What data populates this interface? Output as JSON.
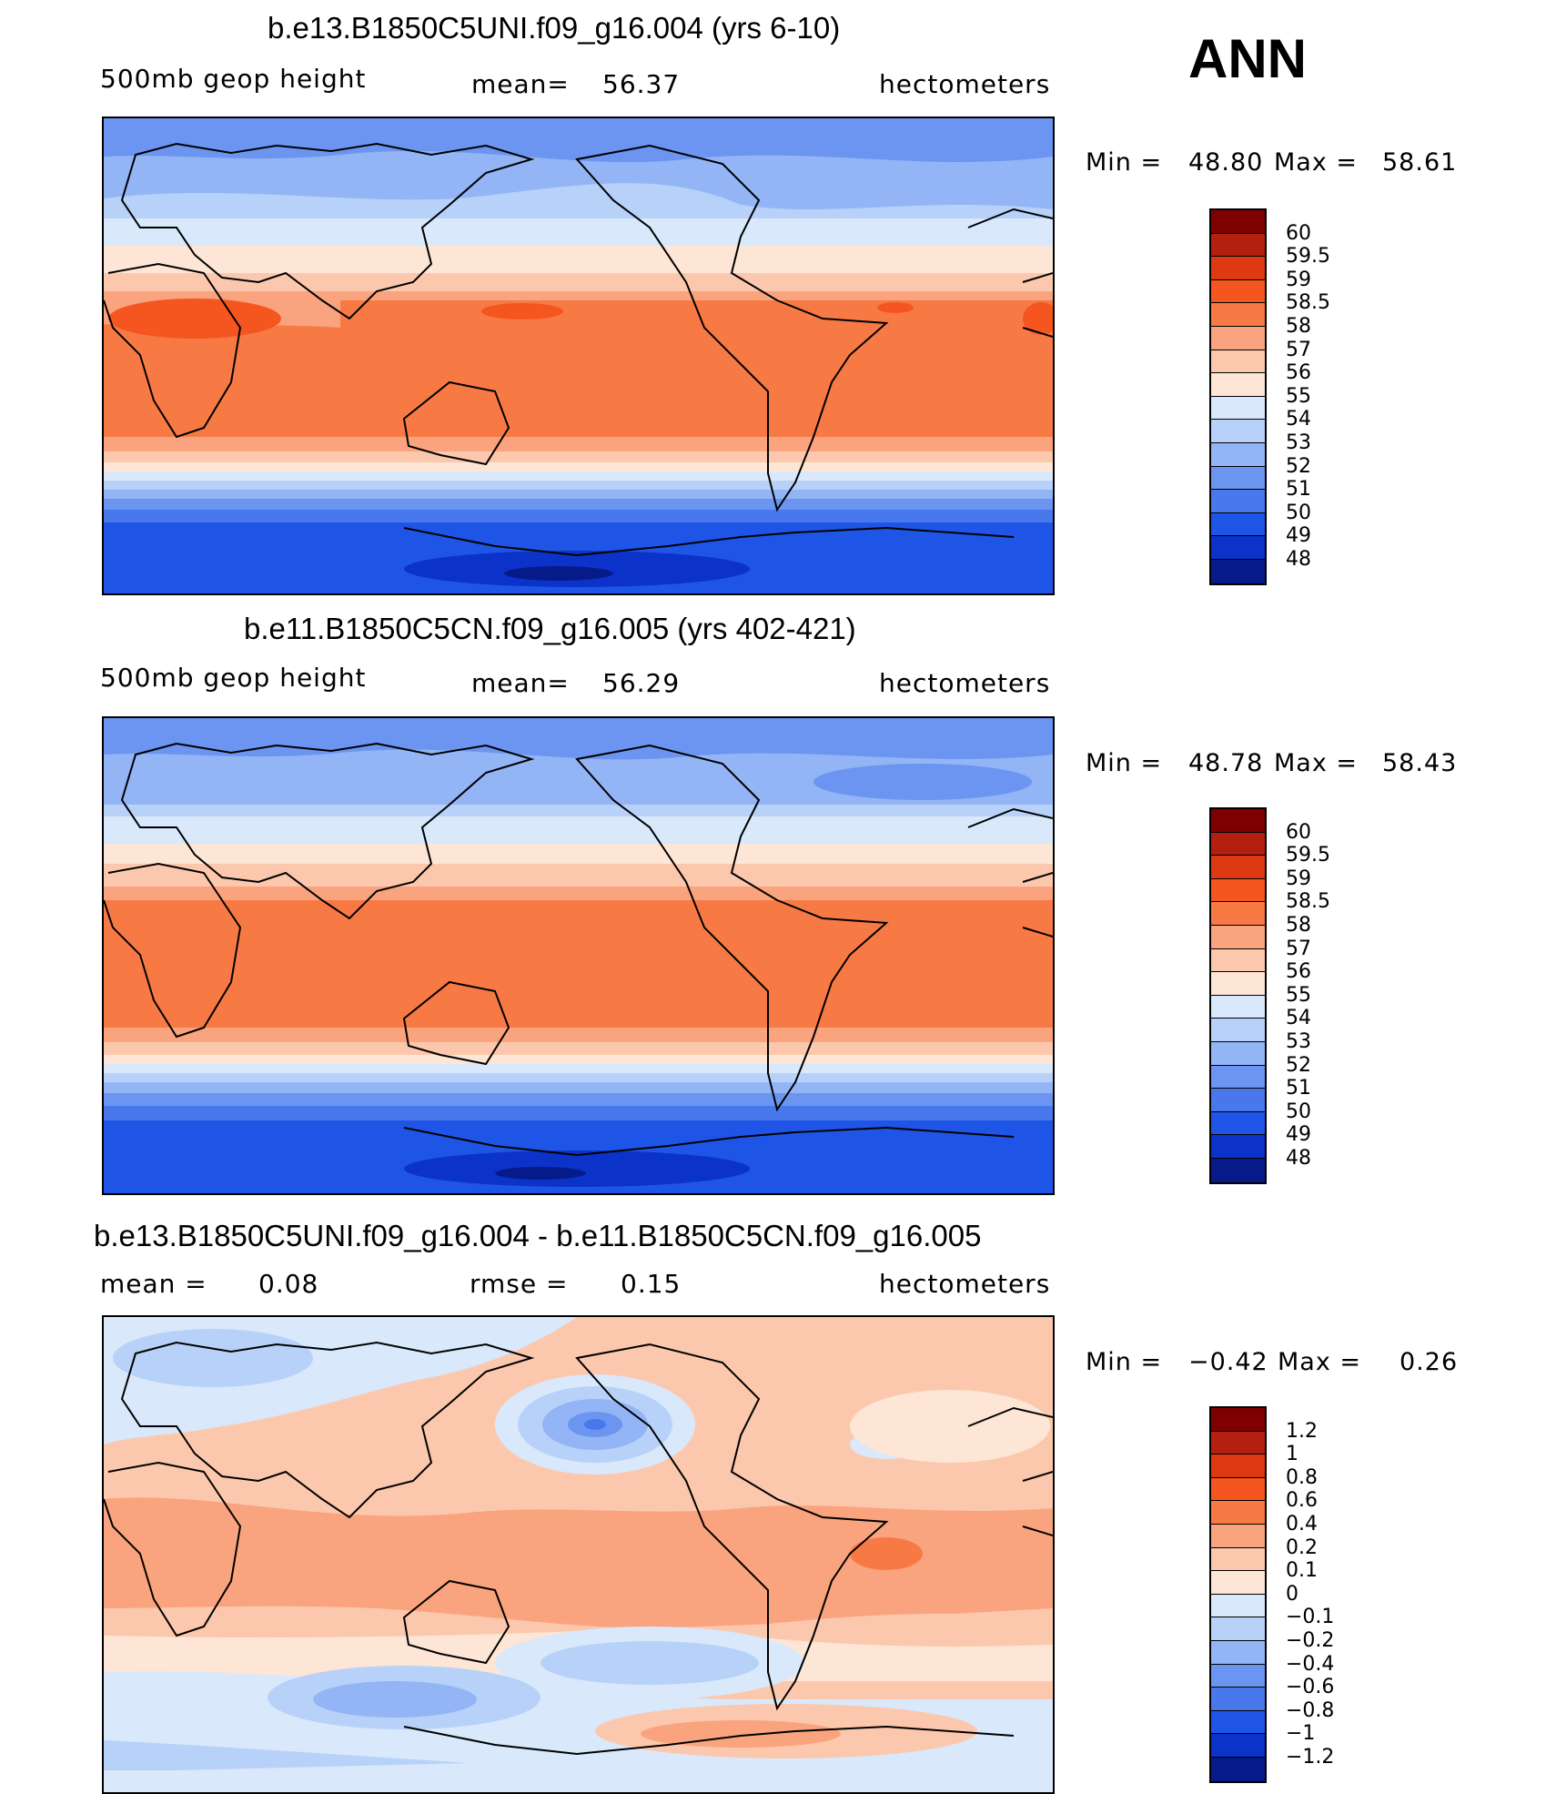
{
  "season": "ANN",
  "panels": [
    {
      "title": "b.e13.B1850C5UNI.f09_g16.004 (yrs 6-10)",
      "left_label": "500mb geop height",
      "mean_label": "mean=",
      "mean_value": "56.37",
      "units": "hectometers",
      "min_label": "Min =",
      "min_value": "48.80",
      "max_label": "Max =",
      "max_value": "58.61",
      "colorbar_levels": [
        "60",
        "59.5",
        "59",
        "58.5",
        "58",
        "57",
        "56",
        "55",
        "54",
        "53",
        "52",
        "51",
        "50",
        "49",
        "48"
      ]
    },
    {
      "title": "b.e11.B1850C5CN.f09_g16.005 (yrs 402-421)",
      "left_label": "500mb geop height",
      "mean_label": "mean=",
      "mean_value": "56.29",
      "units": "hectometers",
      "min_label": "Min =",
      "min_value": "48.78",
      "max_label": "Max =",
      "max_value": "58.43",
      "colorbar_levels": [
        "60",
        "59.5",
        "59",
        "58.5",
        "58",
        "57",
        "56",
        "55",
        "54",
        "53",
        "52",
        "51",
        "50",
        "49",
        "48"
      ]
    },
    {
      "title": "b.e13.B1850C5UNI.f09_g16.004 - b.e11.B1850C5CN.f09_g16.005",
      "left_label": "mean =",
      "mean_label": "rmse =",
      "left_value": "0.08",
      "mean_value": "0.15",
      "units": "hectometers",
      "min_label": "Min =",
      "min_value": "−0.42",
      "max_label": "Max =",
      "max_value": "0.26",
      "colorbar_levels": [
        "1.2",
        "1",
        "0.8",
        "0.6",
        "0.4",
        "0.2",
        "0.1",
        "0",
        "−0.1",
        "−0.2",
        "−0.4",
        "−0.6",
        "−0.8",
        "−1",
        "−1.2"
      ]
    }
  ],
  "colors": {
    "abs_scale": [
      "#7f0000",
      "#b3200f",
      "#de3a12",
      "#f5561f",
      "#f77a45",
      "#f9a47e",
      "#fcc8ad",
      "#fde6d6",
      "#d9e8fb",
      "#b7d1f8",
      "#93b5f5",
      "#6b95f0",
      "#4878ec",
      "#1f55e6",
      "#0b33c9",
      "#071a8a"
    ],
    "diff_scale": [
      "#7f0000",
      "#b3200f",
      "#de3a12",
      "#f5561f",
      "#f77a45",
      "#f9a47e",
      "#fcc8ad",
      "#fde6d6",
      "#d9e8fb",
      "#b7d1f8",
      "#93b5f5",
      "#6b95f0",
      "#4878ec",
      "#1f55e6",
      "#0b33c9",
      "#071a8a"
    ]
  }
}
